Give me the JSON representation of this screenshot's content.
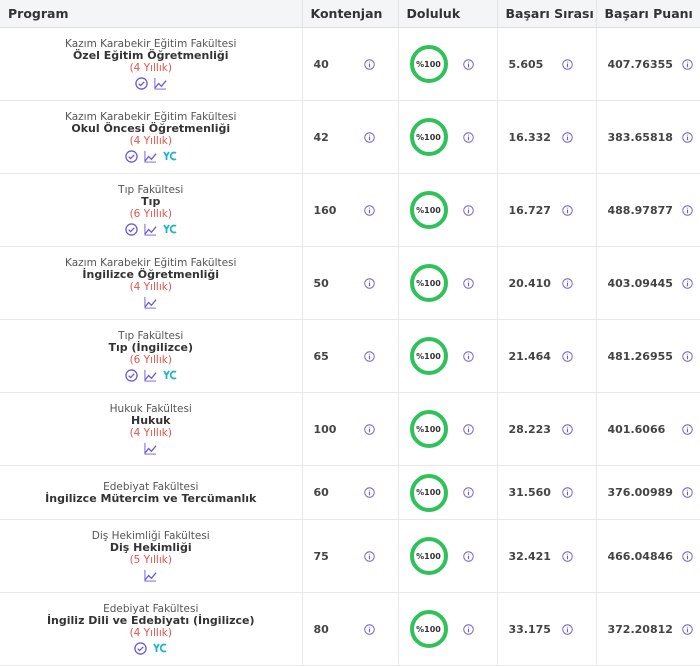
{
  "table": {
    "headers": [
      "Program",
      "Kontenjan",
      "Doluluk",
      "Başarı Sırası",
      "Başarı Puanı"
    ],
    "rows": [
      {
        "faculty": "Kazım Karabekir Eğitim Fakültesi",
        "program": "Özel Eğitim Öğretmenliği",
        "duration": "(4 Yıllık)",
        "quota": 40,
        "fill": "%100",
        "rank": "5.605",
        "score": "407.76355"
      },
      {
        "faculty": "Kazım Karabekir Eğitim Fakültesi",
        "program": "Okul Öncesi Öğretmenliği",
        "duration": "(4 Yıllık)",
        "quota": 42,
        "fill": "%100",
        "rank": "16.332",
        "score": "383.65818"
      },
      {
        "faculty": "Tıp Fakültesi",
        "program": "Tıp",
        "duration": "(6 Yıllık)",
        "quota": 160,
        "fill": "%100",
        "rank": "16.727",
        "score": "488.97877"
      },
      {
        "faculty": "Kazım Karabekir Eğitim Fakültesi",
        "program": "İngilizce Öğretmenliği",
        "duration": "(4 Yıllık)",
        "quota": 50,
        "fill": "%100",
        "rank": "20.410",
        "score": "403.09445"
      },
      {
        "faculty": "Tıp Fakültesi",
        "program": "Tıp (İngilizce)",
        "duration": "(6 Yıllık)",
        "quota": 65,
        "fill": "%100",
        "rank": "21.464",
        "score": "481.26955"
      },
      {
        "faculty": "Hukuk Fakültesi",
        "program": "Hukuk",
        "duration": "(4 Yıllık)",
        "quota": 100,
        "fill": "%100",
        "rank": "28.223",
        "score": "401.6066"
      },
      {
        "faculty": "Edebiyat Fakültesi",
        "program": "İngilizce Mütercim ve Tercümanlık",
        "quota": 60,
        "fill": "%100",
        "rank": "31.560",
        "score": "376.00989"
      },
      {
        "faculty": "Diş Hekimliği Fakültesi",
        "program": "Diş Hekimliği",
        "duration": "(5 Yıllık)",
        "quota": 75,
        "fill": "%100",
        "rank": "32.421",
        "score": "466.04846"
      },
      {
        "faculty": "Edebiyat Fakültesi",
        "program": "İngiliz Dili ve Edebiyatı (İngilizce)",
        "duration": "(4 Yıllık)",
        "quota": 80,
        "fill": "%100",
        "rank": "33.175",
        "score": "372.20812"
      }
    ]
  }
}
